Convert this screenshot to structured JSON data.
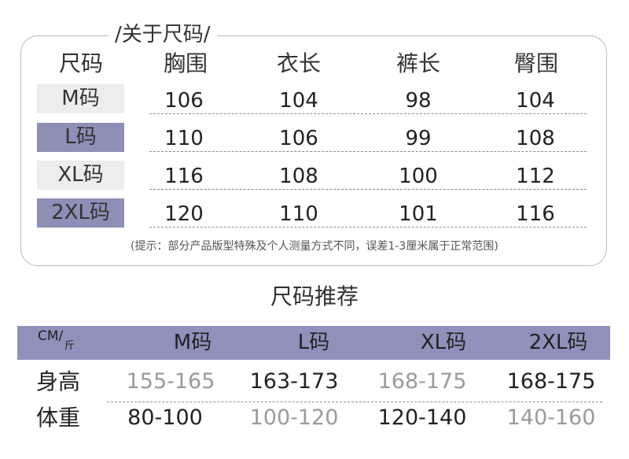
{
  "size_table": {
    "title": "/关于尺码/",
    "header": [
      "尺码",
      "胸围",
      "衣长",
      "裤长",
      "臀围"
    ],
    "rows": [
      {
        "size": "M码",
        "values": [
          "106",
          "104",
          "98",
          "104"
        ]
      },
      {
        "size": "L码",
        "values": [
          "110",
          "106",
          "99",
          "108"
        ]
      },
      {
        "size": "XL码",
        "values": [
          "116",
          "108",
          "100",
          "112"
        ]
      },
      {
        "size": "2XL码",
        "values": [
          "120",
          "110",
          "101",
          "116"
        ]
      }
    ],
    "note": "(提示：部分产品版型特殊及个人测量方式不同，误差1-3厘米属于正常范围)"
  },
  "recommend": {
    "title": "尺码推荐",
    "unit_top": "CM/",
    "unit_bottom": "斤",
    "sizes": [
      "M码",
      "L码",
      "XL码",
      "2XL码"
    ],
    "rows": [
      {
        "label": "身高",
        "values": [
          "155-165",
          "163-173",
          "168-175",
          "168-175"
        ]
      },
      {
        "label": "体重",
        "values": [
          "80-100",
          "100-120",
          "120-140",
          "140-160"
        ]
      }
    ]
  },
  "colors": {
    "accent_purple": "#8f91ba",
    "light_gray_tag": "#ededed",
    "muted_text": "#9a9a9a"
  }
}
